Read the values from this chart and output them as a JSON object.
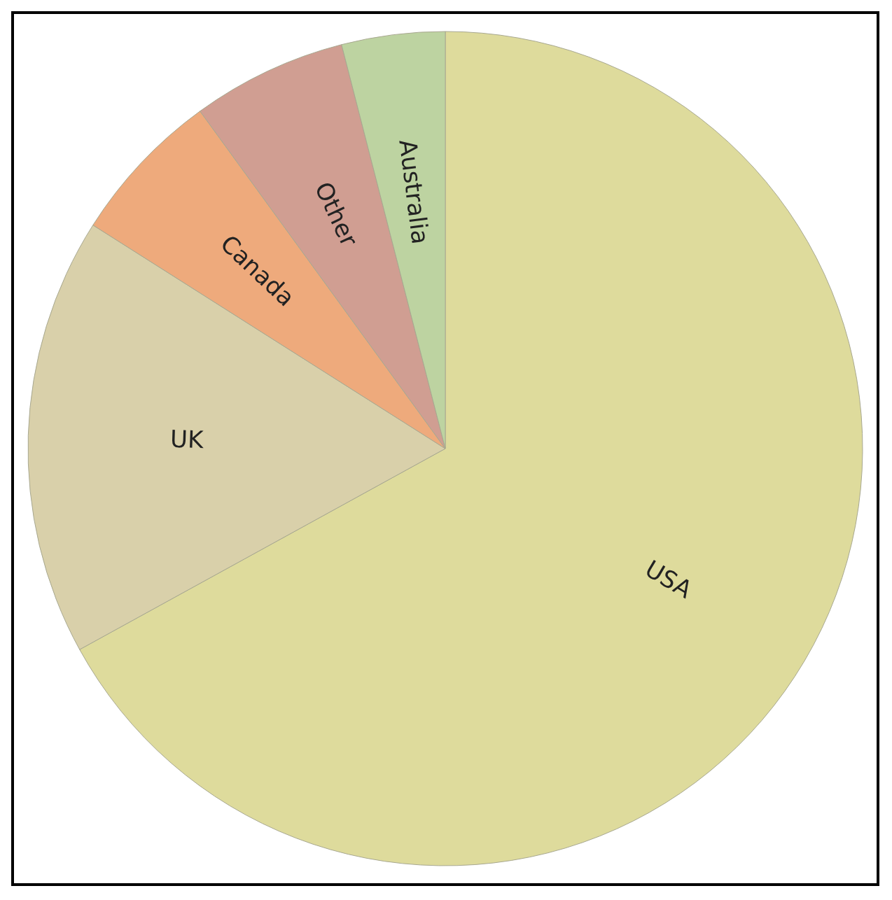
{
  "chart_data": {
    "type": "pie",
    "categories": [
      "USA",
      "UK",
      "Canada",
      "Other",
      "Australia"
    ],
    "values": [
      67,
      17,
      6,
      6,
      4
    ],
    "colors": [
      "#dedb9c",
      "#d9d0aa",
      "#eeaa7c",
      "#d09e92",
      "#bdd3a1"
    ]
  }
}
